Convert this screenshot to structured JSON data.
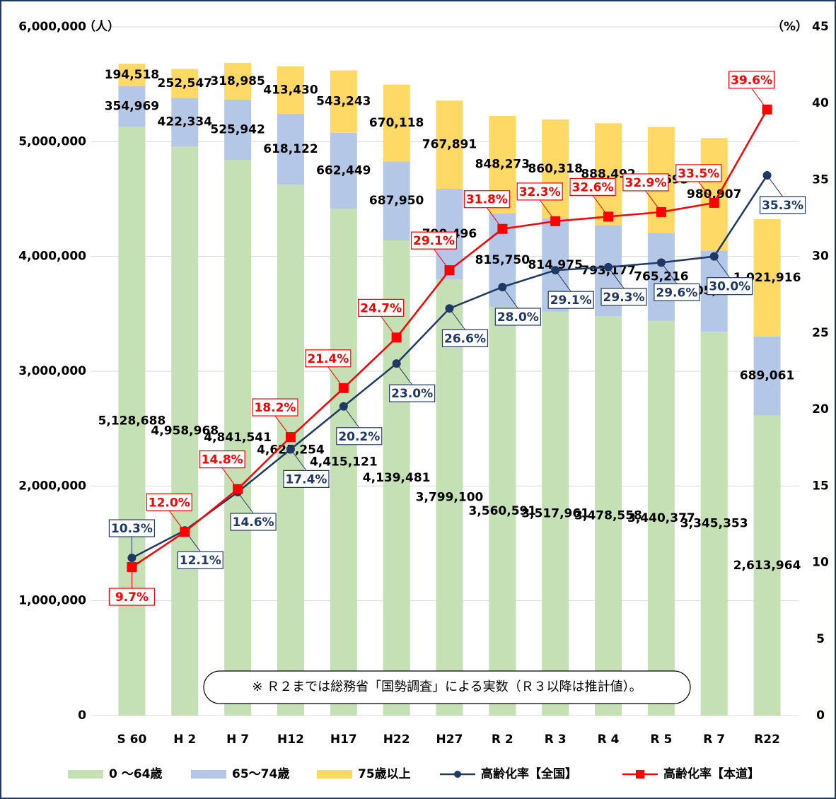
{
  "chart_data": {
    "type": "bar_line",
    "categories": [
      "S 60",
      "H 2",
      "H 7",
      "H12",
      "H17",
      "H22",
      "H27",
      "R 2",
      "R 3",
      "R 4",
      "R 5",
      "R 7",
      "R22"
    ],
    "ylabel": "（人）",
    "y2label": "（%）",
    "ylim": [
      0,
      6000000
    ],
    "yticks": [
      0,
      {
        "value": 1000000,
        "label": "1,000,000"
      },
      {
        "value": 2000000,
        "label": "2,000,000"
      },
      {
        "value": 3000000,
        "label": "3,000,000"
      },
      {
        "value": 4000000,
        "label": "4,000,000"
      },
      {
        "value": 5000000,
        "label": "5,000,000"
      },
      {
        "value": 6000000,
        "label": "6,000,000"
      }
    ],
    "y2lim": [
      0,
      45
    ],
    "y2ticks": [
      0,
      5,
      10,
      15,
      20,
      25,
      30,
      35,
      40,
      45
    ],
    "grid": true,
    "note": "※ Ｒ２までは総務省「国勢調査」による実数（Ｒ３以降は推計値）。",
    "series": [
      {
        "name": "0 ～64歳",
        "type": "bar",
        "color": "#c5e0b4",
        "values": [
          5128688,
          4958968,
          4841541,
          4625254,
          4415121,
          4139481,
          3799100,
          3560591,
          3517961,
          3478558,
          3440377,
          3345353,
          2613964
        ],
        "value_labels": [
          "5,128,688",
          "4,958,968",
          "4,841,541",
          "4,625,254",
          "4,415,121",
          "4,139,481",
          "3,799,100",
          "3,560,591",
          "3,517,961",
          "3,478,558",
          "3,440,377",
          "3,345,353",
          "2,613,964"
        ]
      },
      {
        "name": "65～74歳",
        "type": "bar",
        "color": "#b4c7e7",
        "values": [
          354969,
          422334,
          525942,
          618122,
          662449,
          687950,
          790496,
          815750,
          814975,
          793177,
          765216,
          705663,
          689061
        ],
        "value_labels": [
          "354,969",
          "422,334",
          "525,942",
          "618,122",
          "662,449",
          "687,950",
          "790,496",
          "815,750",
          "814,975",
          "793,177",
          "765,216",
          "705,663",
          "689,061"
        ]
      },
      {
        "name": "75歳以上",
        "type": "bar",
        "color": "#ffd966",
        "values": [
          194518,
          252547,
          318985,
          413430,
          543243,
          670118,
          767891,
          848273,
          860318,
          888492,
          922693,
          980907,
          1021916
        ],
        "value_labels": [
          "194,518",
          "252,547",
          "318,985",
          "413,430",
          "543,243",
          "670,118",
          "767,891",
          "848,273",
          "860,318",
          "888,492",
          "922,693",
          "980,907",
          "1,021,916"
        ]
      },
      {
        "name": "高齢化率【全国】",
        "type": "line",
        "axis": "y2",
        "color": "#1f3864",
        "values": [
          10.3,
          12.1,
          14.6,
          17.4,
          20.2,
          23.0,
          26.6,
          28.0,
          29.1,
          29.3,
          29.6,
          30.0,
          35.3
        ],
        "value_labels": [
          "10.3%",
          "12.1%",
          "14.6%",
          "17.4%",
          "20.2%",
          "23.0%",
          "26.6%",
          "28.0%",
          "29.1%",
          "29.3%",
          "29.6%",
          "30.0%",
          "35.3%"
        ]
      },
      {
        "name": "高齢化率【本道】",
        "type": "line",
        "axis": "y2",
        "color": "#ff0000",
        "values": [
          9.7,
          12.0,
          14.8,
          18.2,
          21.4,
          24.7,
          29.1,
          31.8,
          32.3,
          32.6,
          32.9,
          33.5,
          39.6
        ],
        "value_labels": [
          "9.7%",
          "12.0%",
          "14.8%",
          "18.2%",
          "21.4%",
          "24.7%",
          "29.1%",
          "31.8%",
          "32.3%",
          "32.6%",
          "32.9%",
          "33.5%",
          "39.6%"
        ]
      }
    ]
  }
}
